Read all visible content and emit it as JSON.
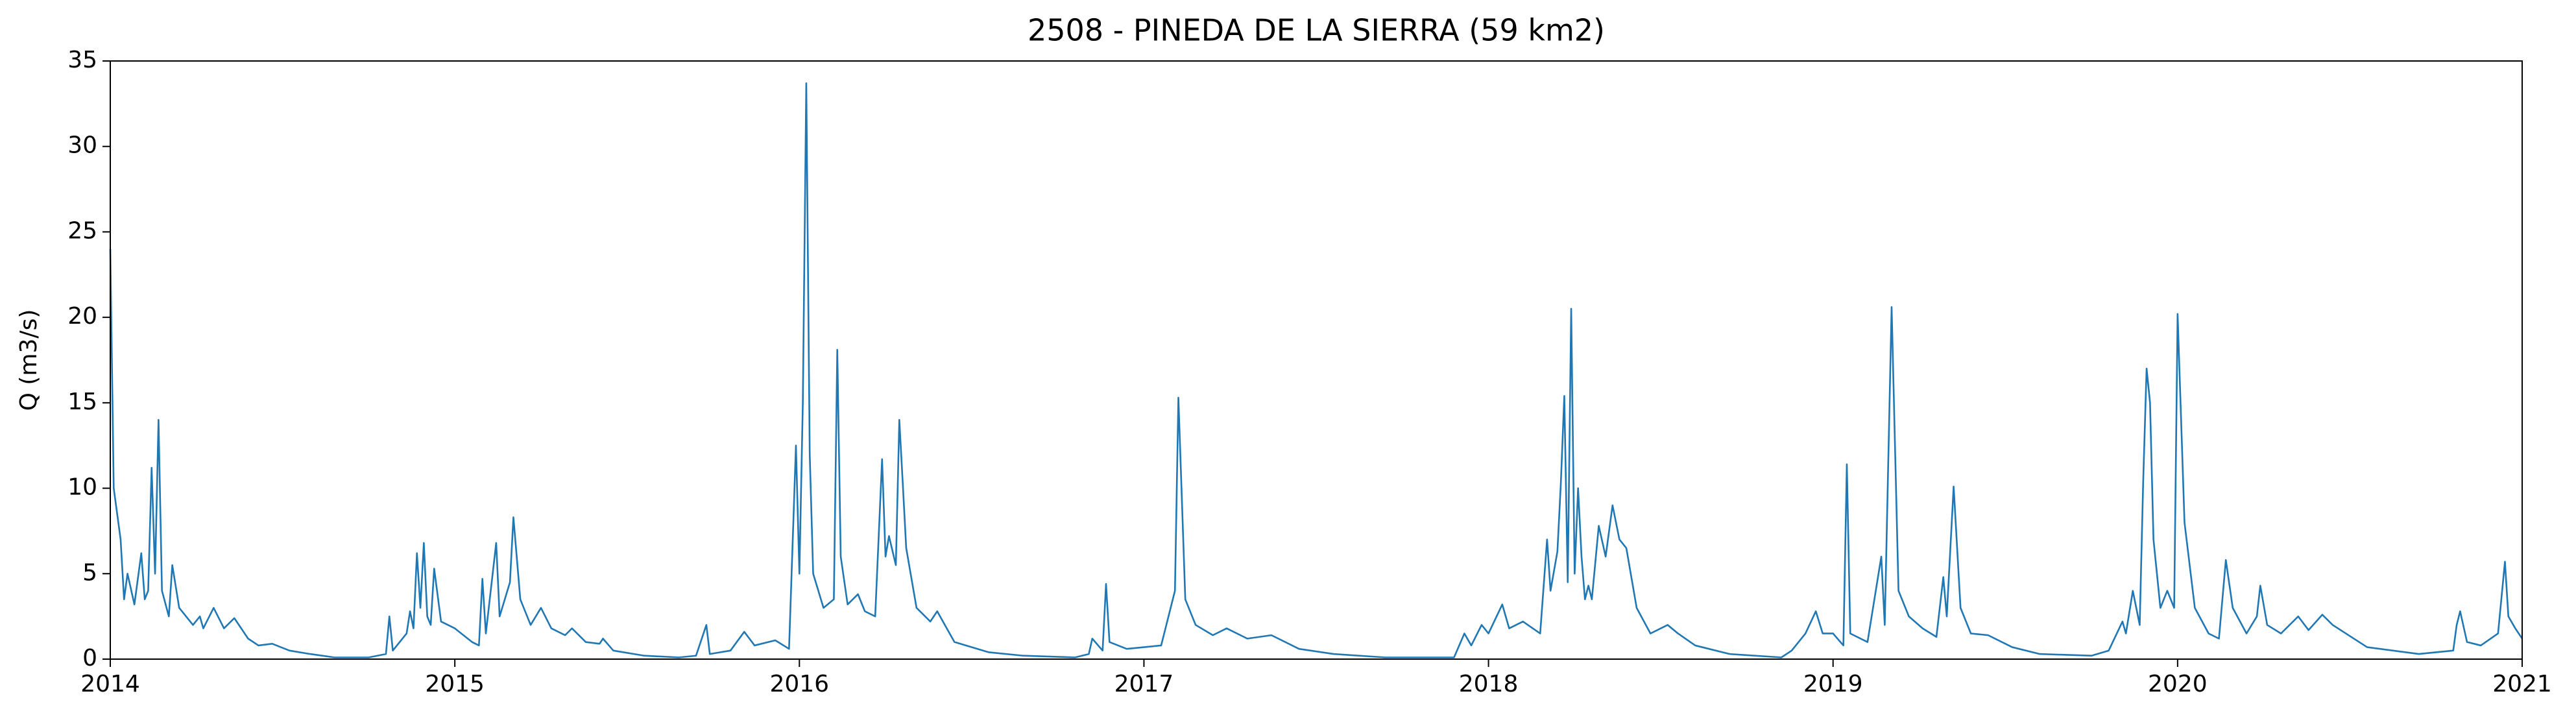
{
  "chart_data": {
    "type": "line",
    "title": "2508 - PINEDA DE LA SIERRA (59 km2)",
    "y_label": "Q (m3/s)",
    "xlim": [
      2014,
      2021
    ],
    "xticks": [
      2014,
      2015,
      2016,
      2017,
      2018,
      2019,
      2020,
      2021
    ],
    "ylim": [
      0,
      35
    ],
    "yticks": [
      0,
      5,
      10,
      15,
      20,
      25,
      30,
      35
    ],
    "grid": false,
    "series": [
      {
        "name": "Q",
        "color": "#1f77b4",
        "x": [
          2014.0,
          2014.01,
          2014.03,
          2014.04,
          2014.05,
          2014.07,
          2014.09,
          2014.1,
          2014.11,
          2014.12,
          2014.13,
          2014.14,
          2014.15,
          2014.17,
          2014.18,
          2014.2,
          2014.24,
          2014.26,
          2014.27,
          2014.3,
          2014.33,
          2014.36,
          2014.4,
          2014.43,
          2014.47,
          2014.52,
          2014.58,
          2014.65,
          2014.75,
          2014.8,
          2014.81,
          2014.82,
          2014.86,
          2014.87,
          2014.88,
          2014.89,
          2014.9,
          2014.91,
          2014.92,
          2014.93,
          2014.94,
          2014.96,
          2015.0,
          2015.05,
          2015.07,
          2015.08,
          2015.09,
          2015.12,
          2015.13,
          2015.16,
          2015.17,
          2015.19,
          2015.22,
          2015.25,
          2015.28,
          2015.32,
          2015.34,
          2015.38,
          2015.42,
          2015.43,
          2015.46,
          2015.55,
          2015.65,
          2015.7,
          2015.73,
          2015.74,
          2015.8,
          2015.84,
          2015.87,
          2015.93,
          2015.97,
          2015.99,
          2016.0,
          2016.01,
          2016.02,
          2016.03,
          2016.04,
          2016.07,
          2016.1,
          2016.11,
          2016.12,
          2016.14,
          2016.17,
          2016.19,
          2016.22,
          2016.24,
          2016.25,
          2016.26,
          2016.28,
          2016.29,
          2016.3,
          2016.31,
          2016.34,
          2016.38,
          2016.4,
          2016.45,
          2016.55,
          2016.65,
          2016.8,
          2016.84,
          2016.85,
          2016.88,
          2016.89,
          2016.9,
          2016.95,
          2017.05,
          2017.09,
          2017.1,
          2017.12,
          2017.15,
          2017.2,
          2017.24,
          2017.3,
          2017.37,
          2017.45,
          2017.55,
          2017.7,
          2017.9,
          2017.93,
          2017.95,
          2017.98,
          2018.0,
          2018.04,
          2018.06,
          2018.1,
          2018.15,
          2018.17,
          2018.18,
          2018.2,
          2018.21,
          2018.22,
          2018.23,
          2018.24,
          2018.25,
          2018.26,
          2018.27,
          2018.28,
          2018.29,
          2018.3,
          2018.32,
          2018.34,
          2018.36,
          2018.38,
          2018.4,
          2018.43,
          2018.47,
          2018.52,
          2018.55,
          2018.6,
          2018.7,
          2018.85,
          2018.88,
          2018.92,
          2018.95,
          2018.97,
          2019.0,
          2019.03,
          2019.04,
          2019.05,
          2019.1,
          2019.14,
          2019.15,
          2019.17,
          2019.19,
          2019.22,
          2019.26,
          2019.3,
          2019.32,
          2019.33,
          2019.35,
          2019.37,
          2019.4,
          2019.45,
          2019.52,
          2019.6,
          2019.75,
          2019.8,
          2019.84,
          2019.85,
          2019.87,
          2019.89,
          2019.9,
          2019.91,
          2019.92,
          2019.93,
          2019.95,
          2019.97,
          2019.99,
          2020.0,
          2020.02,
          2020.05,
          2020.09,
          2020.12,
          2020.14,
          2020.16,
          2020.2,
          2020.23,
          2020.24,
          2020.26,
          2020.3,
          2020.35,
          2020.38,
          2020.42,
          2020.45,
          2020.55,
          2020.7,
          2020.8,
          2020.81,
          2020.82,
          2020.84,
          2020.88,
          2020.93,
          2020.95,
          2020.96,
          2020.98,
          2021.0
        ],
        "values": [
          24,
          10,
          7,
          3.5,
          5,
          3.2,
          6.2,
          3.5,
          4,
          11.2,
          5,
          14,
          4,
          2.5,
          5.5,
          3,
          2,
          2.5,
          1.8,
          3,
          1.8,
          2.4,
          1.2,
          0.8,
          0.9,
          0.5,
          0.3,
          0.1,
          0.1,
          0.3,
          2.5,
          0.5,
          1.5,
          2.8,
          1.8,
          6.2,
          3,
          6.8,
          2.5,
          2,
          5.3,
          2.2,
          1.8,
          1,
          0.8,
          4.7,
          1.5,
          6.8,
          2.5,
          4.5,
          8.3,
          3.5,
          2,
          3,
          1.8,
          1.4,
          1.8,
          1,
          0.9,
          1.2,
          0.5,
          0.2,
          0.1,
          0.2,
          2,
          0.3,
          0.5,
          1.6,
          0.8,
          1.1,
          0.6,
          12.5,
          5,
          15,
          33.7,
          12,
          5,
          3,
          3.5,
          18.1,
          6,
          3.2,
          3.8,
          2.8,
          2.5,
          11.7,
          6,
          7.2,
          5.5,
          14,
          10.3,
          6.5,
          3,
          2.2,
          2.8,
          1,
          0.4,
          0.2,
          0.1,
          0.3,
          1.2,
          0.5,
          4.4,
          1,
          0.6,
          0.8,
          4,
          15.3,
          3.5,
          2,
          1.4,
          1.8,
          1.2,
          1.4,
          0.6,
          0.3,
          0.1,
          0.1,
          1.5,
          0.8,
          2,
          1.5,
          3.2,
          1.8,
          2.2,
          1.5,
          7,
          4,
          6.3,
          10.3,
          15.4,
          4.5,
          20.5,
          5,
          10,
          6,
          3.5,
          4.3,
          3.5,
          7.8,
          6,
          9,
          7,
          6.5,
          3,
          1.5,
          2,
          1.5,
          0.8,
          0.3,
          0.1,
          0.5,
          1.5,
          2.8,
          1.5,
          1.5,
          0.8,
          11.4,
          1.5,
          1,
          6,
          2,
          20.6,
          4,
          2.5,
          1.8,
          1.3,
          4.8,
          2.5,
          10.1,
          3,
          1.5,
          1.4,
          0.7,
          0.3,
          0.2,
          0.5,
          2.2,
          1.5,
          4,
          2,
          10.3,
          17,
          15,
          7,
          3,
          4,
          3,
          20.2,
          8,
          3,
          1.5,
          1.2,
          5.8,
          3,
          1.5,
          2.5,
          4.3,
          2,
          1.5,
          2.5,
          1.7,
          2.6,
          2,
          0.7,
          0.3,
          0.5,
          2.0,
          2.8,
          1.0,
          0.8,
          1.5,
          5.7,
          2.5,
          1.8,
          1.2
        ]
      }
    ]
  }
}
